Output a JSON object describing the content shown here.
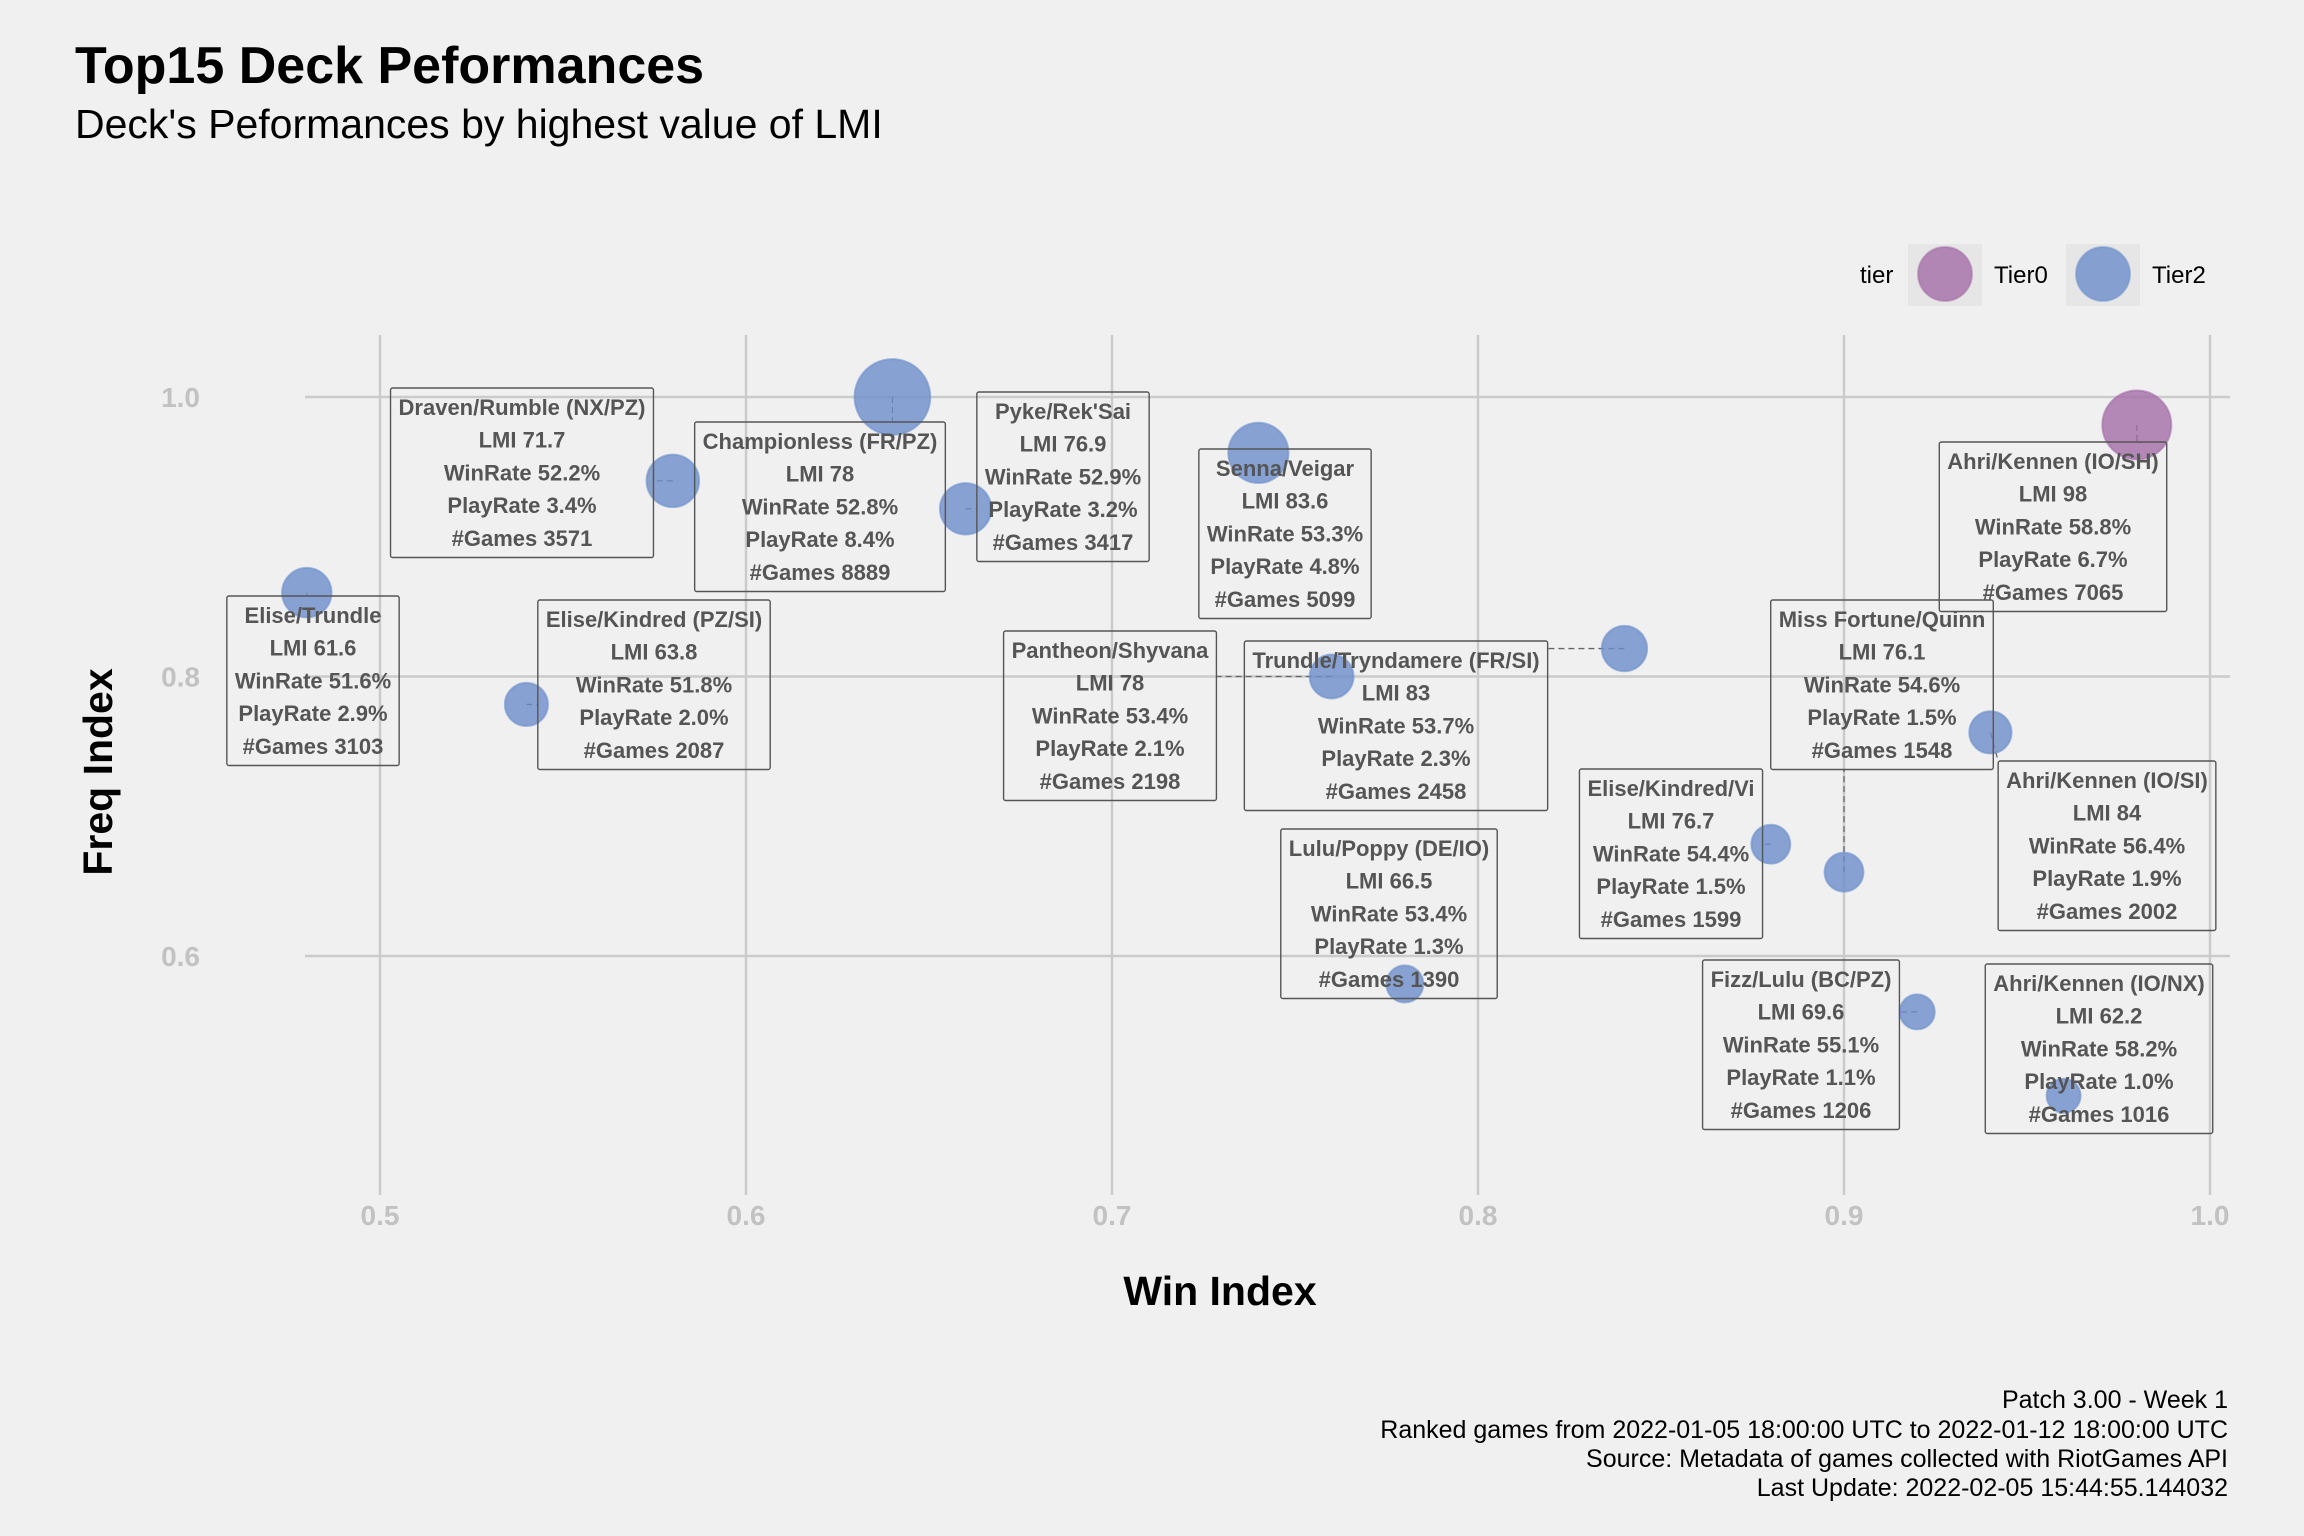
{
  "title": "Top15 Deck Peformances",
  "subtitle": "Deck's Peformances by highest value of LMI",
  "caption": [
    "Patch 3.00 - Week 1",
    "Ranked games from 2022-01-05 18:00:00 UTC to 2022-01-12 18:00:00 UTC",
    "Source: Metadata of games collected with RiotGames API",
    "Last Update: 2022-02-05 15:44:55.144032"
  ],
  "legend": {
    "title": "tier",
    "items": [
      {
        "label": "Tier0",
        "color": "#a46da8"
      },
      {
        "label": "Tier2",
        "color": "#6d8fcb"
      }
    ]
  },
  "chart_data": {
    "type": "scatter",
    "xlabel": "Win Index",
    "ylabel": "Freq Index",
    "xlim": [
      0.455,
      1.005
    ],
    "ylim": [
      0.45,
      1.06
    ],
    "x_ticks": [
      "0.5",
      "0.6",
      "0.7",
      "0.8",
      "0.9",
      "1.0"
    ],
    "x_tick_values": [
      0.5,
      0.6,
      0.7,
      0.8,
      0.9,
      1.0
    ],
    "y_ticks": [
      "0.6",
      "0.8",
      "1.0"
    ],
    "y_tick_values": [
      0.6,
      0.8,
      1.0
    ],
    "grid": true,
    "legend_position": "top-right",
    "size_variable": "PlayRate",
    "color_variable": "tier",
    "points": [
      {
        "deck": "Ahri/Kennen (IO/SH)",
        "tier": "Tier0",
        "x": 0.98,
        "y": 0.98,
        "lmi": "LMI 98",
        "winrate": "WinRate 58.8%",
        "playrate": "PlayRate 6.7%",
        "games": "#Games 7065",
        "size": 6.7
      },
      {
        "deck": "Ahri/Kennen (IO/SI)",
        "tier": "Tier2",
        "x": 0.94,
        "y": 0.76,
        "lmi": "LMI 84",
        "winrate": "WinRate 56.4%",
        "playrate": "PlayRate 1.9%",
        "games": "#Games 2002",
        "size": 1.9
      },
      {
        "deck": "Senna/Veigar",
        "tier": "Tier2",
        "x": 0.74,
        "y": 0.96,
        "lmi": "LMI 83.6",
        "winrate": "WinRate 53.3%",
        "playrate": "PlayRate 4.8%",
        "games": "#Games 5099",
        "size": 4.8
      },
      {
        "deck": "Trundle/Tryndamere (FR/SI)",
        "tier": "Tier2",
        "x": 0.84,
        "y": 0.82,
        "lmi": "LMI 83",
        "winrate": "WinRate 53.7%",
        "playrate": "PlayRate 2.3%",
        "games": "#Games 2458",
        "size": 2.3
      },
      {
        "deck": "Championless (FR/PZ)",
        "tier": "Tier2",
        "x": 0.64,
        "y": 1.0,
        "lmi": "LMI 78",
        "winrate": "WinRate 52.8%",
        "playrate": "PlayRate 8.4%",
        "games": "#Games 8889",
        "size": 8.4
      },
      {
        "deck": "Pantheon/Shyvana",
        "tier": "Tier2",
        "x": 0.76,
        "y": 0.8,
        "lmi": "LMI 78",
        "winrate": "WinRate 53.4%",
        "playrate": "PlayRate 2.1%",
        "games": "#Games 2198",
        "size": 2.1
      },
      {
        "deck": "Pyke/Rek'Sai",
        "tier": "Tier2",
        "x": 0.66,
        "y": 0.92,
        "lmi": "LMI 76.9",
        "winrate": "WinRate 52.9%",
        "playrate": "PlayRate 3.2%",
        "games": "#Games 3417",
        "size": 3.2
      },
      {
        "deck": "Elise/Kindred/Vi",
        "tier": "Tier2",
        "x": 0.88,
        "y": 0.68,
        "lmi": "LMI 76.7",
        "winrate": "WinRate 54.4%",
        "playrate": "PlayRate 1.5%",
        "games": "#Games 1599",
        "size": 1.5
      },
      {
        "deck": "Miss Fortune/Quinn",
        "tier": "Tier2",
        "x": 0.9,
        "y": 0.66,
        "lmi": "LMI 76.1",
        "winrate": "WinRate 54.6%",
        "playrate": "PlayRate 1.5%",
        "games": "#Games 1548",
        "size": 1.5
      },
      {
        "deck": "Draven/Rumble (NX/PZ)",
        "tier": "Tier2",
        "x": 0.58,
        "y": 0.94,
        "lmi": "LMI 71.7",
        "winrate": "WinRate 52.2%",
        "playrate": "PlayRate 3.4%",
        "games": "#Games 3571",
        "size": 3.4
      },
      {
        "deck": "Fizz/Lulu (BC/PZ)",
        "tier": "Tier2",
        "x": 0.92,
        "y": 0.56,
        "lmi": "LMI 69.6",
        "winrate": "WinRate 55.1%",
        "playrate": "PlayRate 1.1%",
        "games": "#Games 1206",
        "size": 1.1
      },
      {
        "deck": "Lulu/Poppy (DE/IO)",
        "tier": "Tier2",
        "x": 0.78,
        "y": 0.58,
        "lmi": "LMI 66.5",
        "winrate": "WinRate 53.4%",
        "playrate": "PlayRate 1.3%",
        "games": "#Games 1390",
        "size": 1.3
      },
      {
        "deck": "Elise/Kindred (PZ/SI)",
        "tier": "Tier2",
        "x": 0.54,
        "y": 0.78,
        "lmi": "LMI 63.8",
        "winrate": "WinRate 51.8%",
        "playrate": "PlayRate 2.0%",
        "games": "#Games 2087",
        "size": 2.0
      },
      {
        "deck": "Ahri/Kennen (IO/NX)",
        "tier": "Tier2",
        "x": 0.96,
        "y": 0.5,
        "lmi": "LMI 62.2",
        "winrate": "WinRate 58.2%",
        "playrate": "PlayRate 1.0%",
        "games": "#Games 1016",
        "size": 1.0
      },
      {
        "deck": "Elise/Trundle",
        "tier": "Tier2",
        "x": 0.48,
        "y": 0.86,
        "lmi": "LMI 61.6",
        "winrate": "WinRate 51.6%",
        "playrate": "PlayRate 2.9%",
        "games": "#Games 3103",
        "size": 2.9
      }
    ]
  }
}
